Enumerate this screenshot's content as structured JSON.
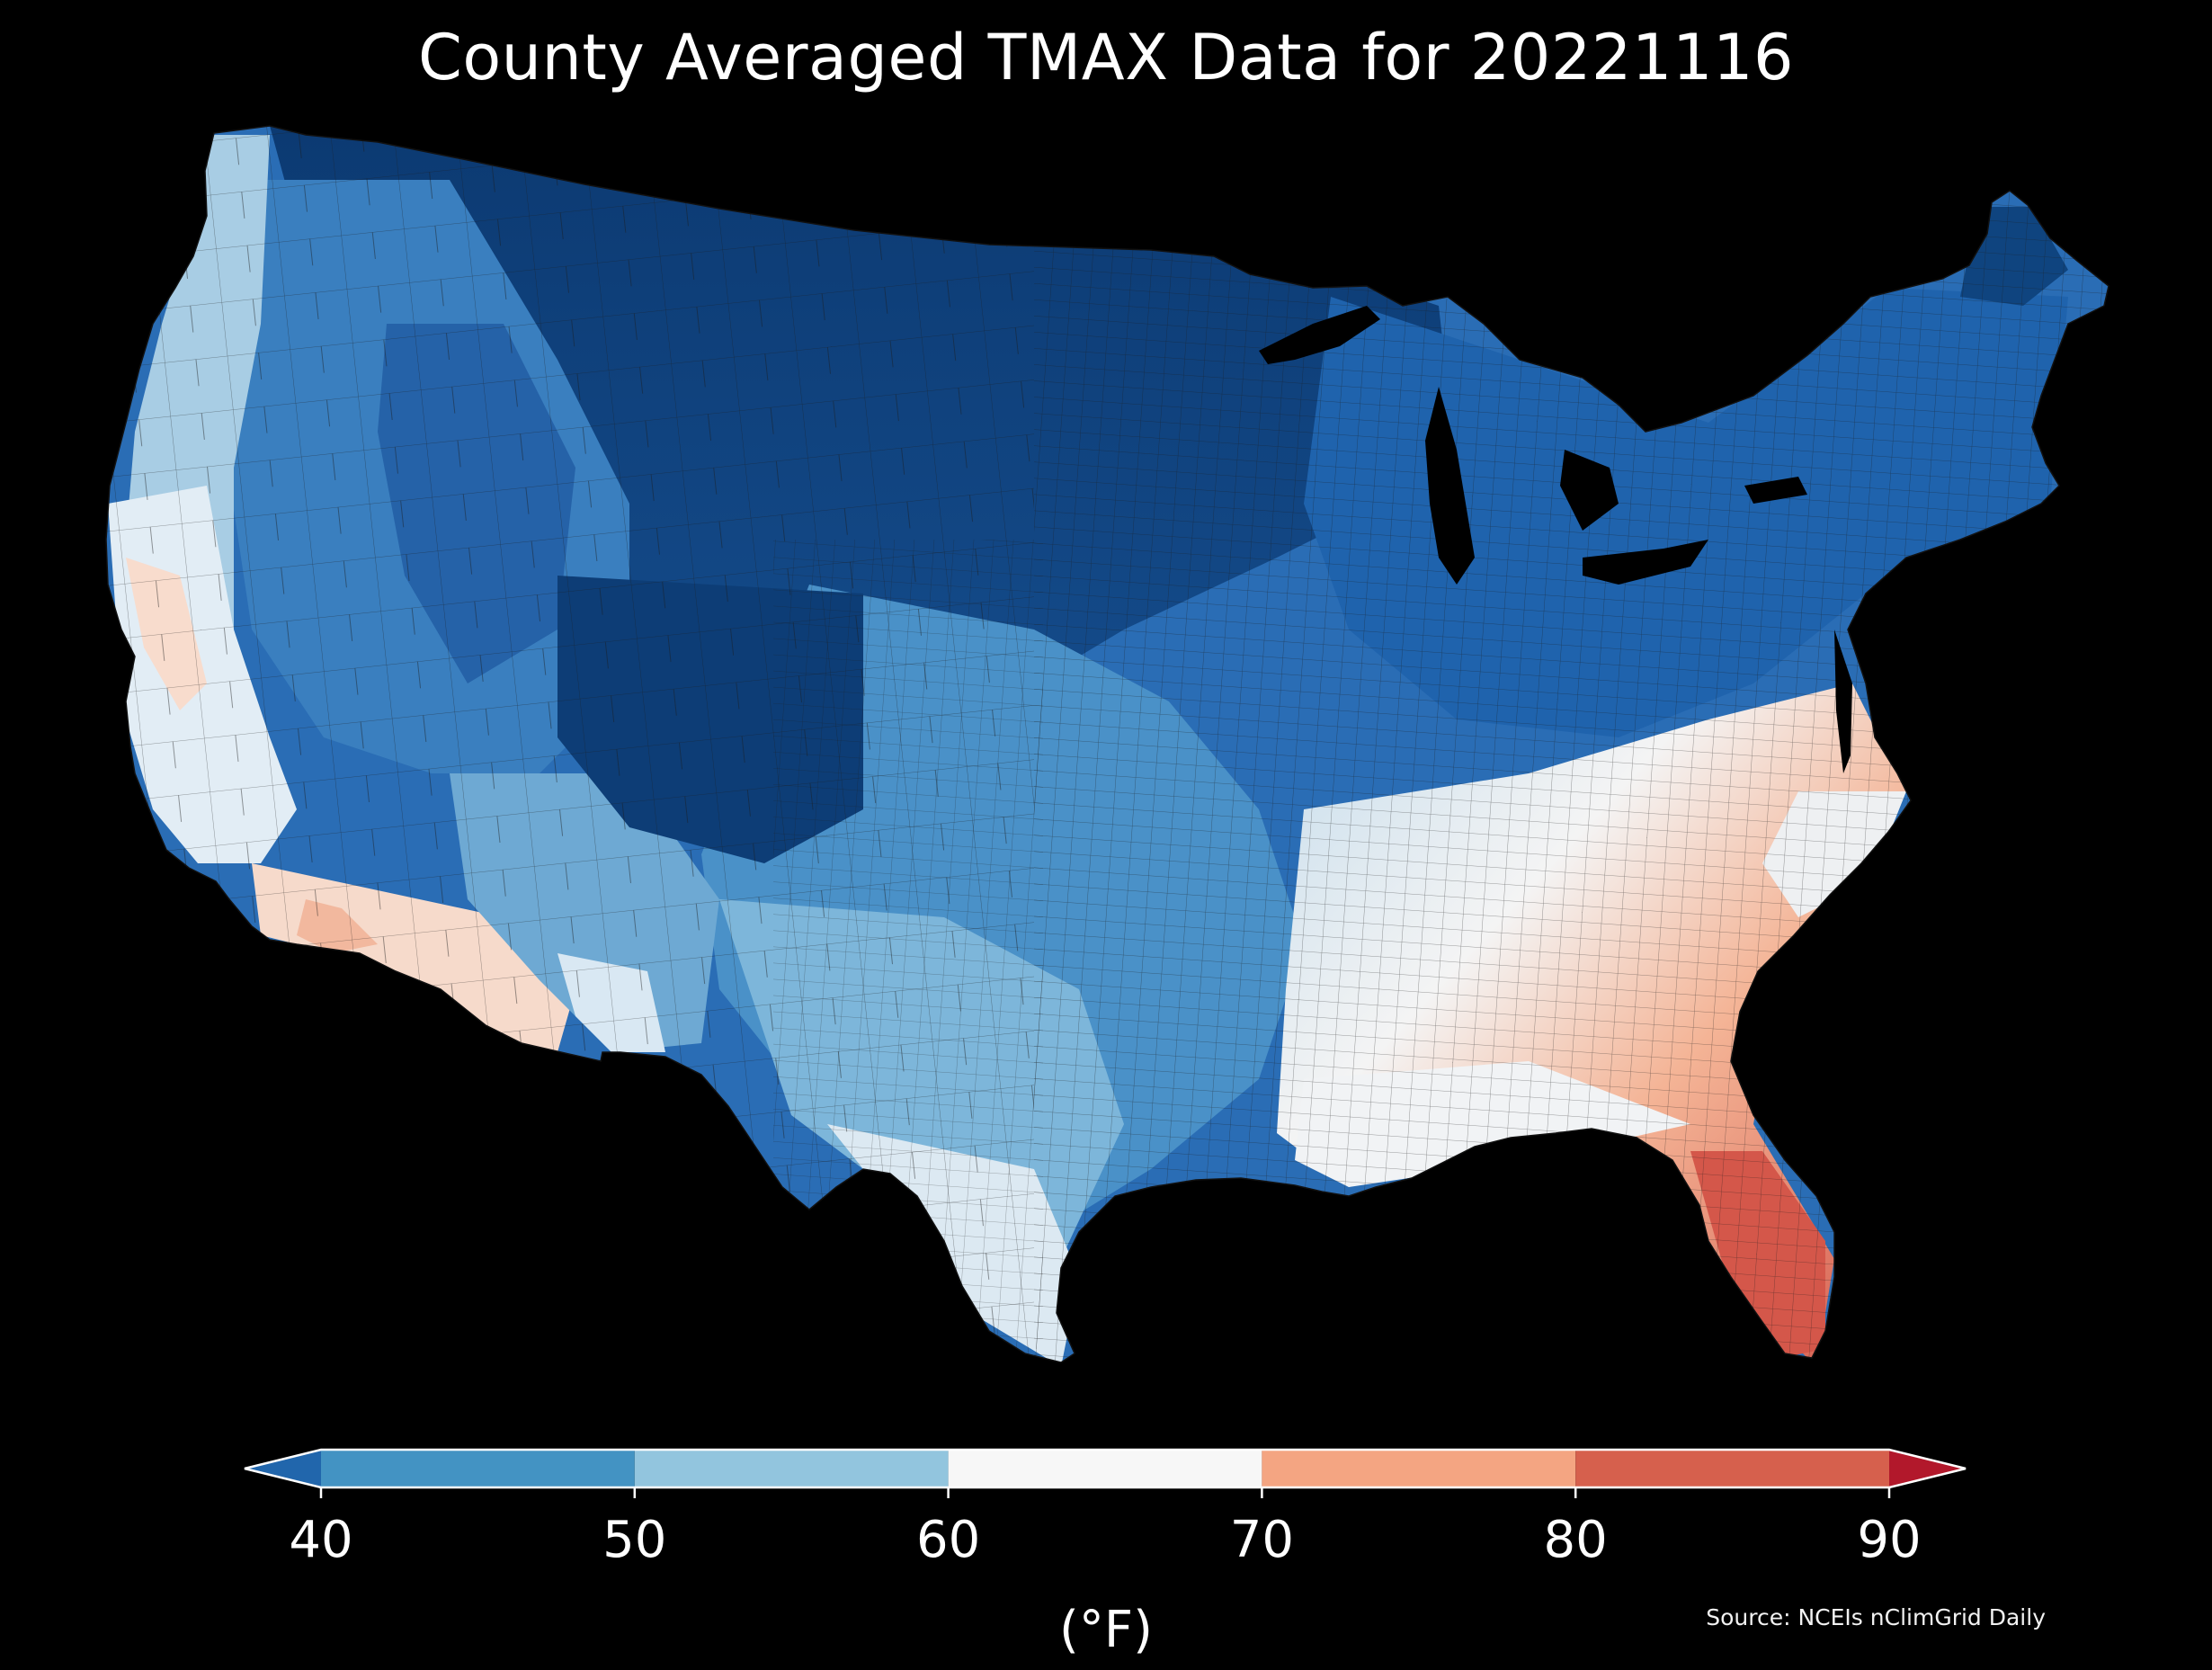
{
  "title": "County Averaged TMAX Data for 20221116",
  "colorbar": {
    "ticks": [
      "40",
      "50",
      "60",
      "70",
      "80",
      "90"
    ],
    "tick_values": [
      40,
      50,
      60,
      70,
      80,
      90
    ],
    "unit_label": "(°F)",
    "bins": [
      {
        "from": 30,
        "to": 40,
        "color": "#2166ac",
        "extend": "min"
      },
      {
        "from": 40,
        "to": 50,
        "color": "#4393c3"
      },
      {
        "from": 50,
        "to": 60,
        "color": "#92c5de"
      },
      {
        "from": 60,
        "to": 70,
        "color": "#f7f7f7"
      },
      {
        "from": 70,
        "to": 80,
        "color": "#f4a582"
      },
      {
        "from": 80,
        "to": 90,
        "color": "#d6604d"
      },
      {
        "from": 90,
        "to": 100,
        "color": "#b2182b",
        "extend": "max"
      }
    ]
  },
  "source": "Source: NCEIs nClimGrid Daily",
  "colors": {
    "background": "#000000",
    "deep_blue": "#0c3a72",
    "mid_blue": "#1f63ad",
    "light_blue": "#5aa2d0",
    "pale_blue": "#c4dcec",
    "white": "#f4f4f4",
    "pale_orange": "#f7cbb0",
    "orange": "#ee9a78",
    "red": "#d4574a",
    "county_border": "#1a1a1a"
  }
}
